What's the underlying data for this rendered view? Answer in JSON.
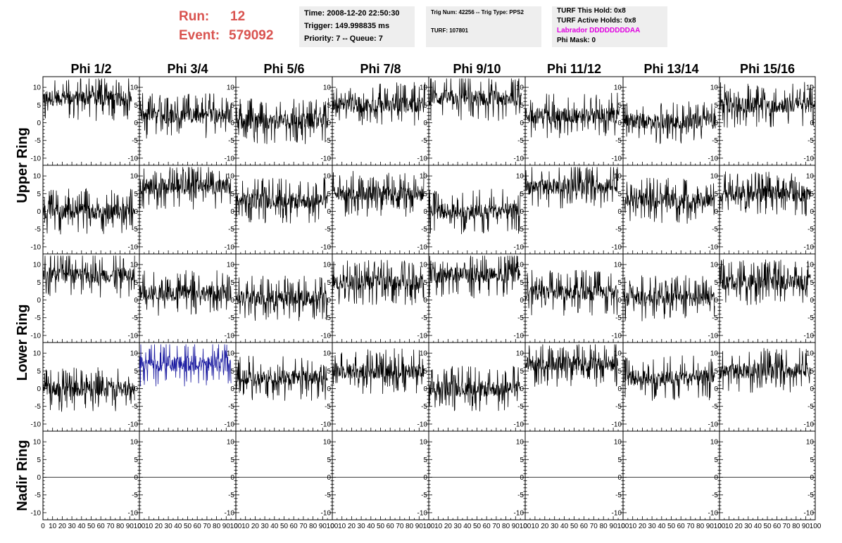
{
  "header": {
    "run_label": "Run:",
    "run_value": "12",
    "event_label": "Event:",
    "event_value": "579092"
  },
  "info1": {
    "time": "Time: 2008-12-20 22:50:30",
    "trigger": "Trigger: 149.998835 ms",
    "priority": "Priority: 7 -- Queue: 7"
  },
  "info2": {
    "trig": "Trig Num: 42256 -- Trig Type: PPS2",
    "turf": "TURF: 107801"
  },
  "info3": {
    "hold": "TURF This Hold: 0x8",
    "active": "TURF Active Holds: 0x8",
    "labrador": "Labrador DDDDDDDDAA",
    "phimask": "Phi Mask: 0"
  },
  "colors": {
    "trace": "#000000",
    "highlight_trace": "#1a1aa0",
    "run_text": "#d9534f",
    "labrador_text": "#e000e0",
    "info_bg": "#eeeeee"
  },
  "chart_data": {
    "type": "line",
    "columns": [
      "Phi 1/2",
      "Phi 3/4",
      "Phi 5/6",
      "Phi 7/8",
      "Phi 9/10",
      "Phi 11/12",
      "Phi 13/14",
      "Phi 15/16"
    ],
    "rows": [
      "Upper Ring",
      "Upper Ring",
      "Lower Ring",
      "Lower Ring",
      "Nadir Ring"
    ],
    "row_labels": [
      "Upper Ring",
      "Lower Ring",
      "Nadir Ring"
    ],
    "xlim": [
      0,
      100
    ],
    "ylim": [
      -12,
      13
    ],
    "x_ticks": [
      "0",
      "10",
      "20",
      "30",
      "40",
      "50",
      "60",
      "70",
      "80",
      "90",
      "100"
    ],
    "y_ticks": [
      "10",
      "5",
      "0",
      "-5",
      "-10"
    ],
    "highlight": {
      "row": 3,
      "col": 1
    },
    "baselines": [
      [
        7,
        2,
        0.5,
        5,
        7,
        2,
        0.5,
        5
      ],
      [
        0,
        7,
        3,
        5,
        0,
        7,
        3,
        5
      ],
      [
        7,
        2,
        0.5,
        5,
        7,
        2,
        0.5,
        5
      ],
      [
        0,
        7,
        3,
        5,
        0,
        7,
        3,
        5
      ],
      [
        0,
        0,
        0,
        0,
        0,
        0,
        0,
        0
      ]
    ],
    "x_extent": [
      [
        92,
        96,
        96,
        96,
        96,
        96,
        96,
        100
      ],
      [
        95,
        95,
        95,
        95,
        95,
        95,
        95,
        95
      ],
      [
        95,
        95,
        95,
        95,
        95,
        95,
        95,
        95
      ],
      [
        95,
        95,
        95,
        95,
        95,
        95,
        95,
        95
      ],
      [
        100,
        100,
        100,
        100,
        100,
        100,
        100,
        100
      ]
    ]
  }
}
